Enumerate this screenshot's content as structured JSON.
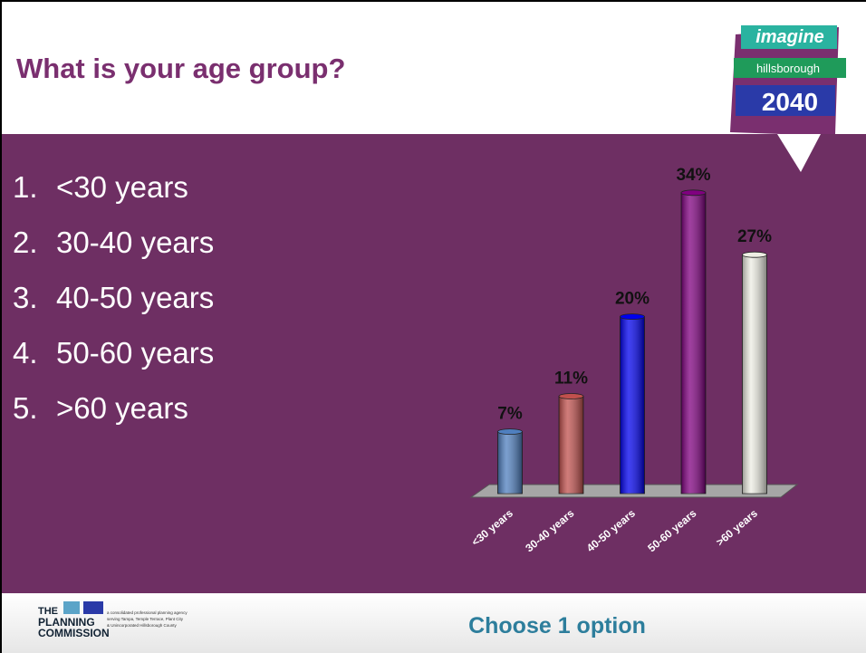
{
  "slide": {
    "title": "What is your age group?",
    "options": [
      {
        "number": "1.",
        "text": "<30 years"
      },
      {
        "number": "2.",
        "text": "30-40 years"
      },
      {
        "number": "3.",
        "text": "40-50 years"
      },
      {
        "number": "4.",
        "text": "50-60 years"
      },
      {
        "number": "5.",
        "text": ">60 years"
      }
    ],
    "footer": "Choose 1 option",
    "logo": {
      "line1": "imagine",
      "line2": "hillsborough",
      "line3": "2040"
    },
    "agency": {
      "name1": "THE",
      "name2": "PLANNING",
      "name3": "COMMISSION",
      "tagline1": "a consolidated professional planning agency",
      "tagline2": "serving Tampa, Temple Terrace, Plant City",
      "tagline3": "& Unincorporated Hillsborough County"
    }
  },
  "chart_data": {
    "type": "bar",
    "categories": [
      "<30 years",
      "30-40 years",
      "40-50 years",
      "50-60 years",
      ">60 years"
    ],
    "values": [
      7,
      11,
      20,
      34,
      27
    ],
    "value_labels": [
      "7%",
      "11%",
      "20%",
      "34%",
      "27%"
    ],
    "colors": [
      "#4f7fbf",
      "#c0504d",
      "#0000ee",
      "#800080",
      "#eeeee4"
    ]
  }
}
